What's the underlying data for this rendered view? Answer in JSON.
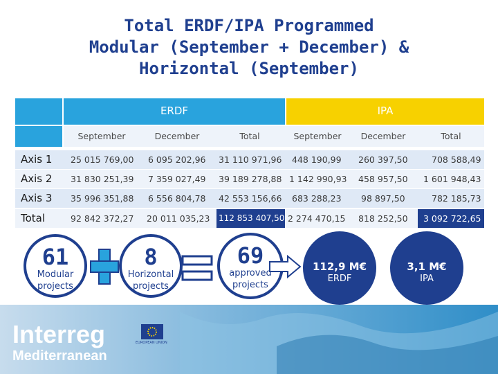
{
  "title_lines": [
    "Total ERDF/IPA Programmed",
    "Modular (September + December) &",
    "Horizontal (September)"
  ],
  "headers": {
    "erdf": "ERDF",
    "ipa": "IPA"
  },
  "subheaders": [
    "September",
    "December",
    "Total",
    "September",
    "December",
    "Total"
  ],
  "rows": [
    {
      "label": "Axis 1",
      "values": [
        "25 015 769,00",
        "6 095 202,96",
        "31 110 971,96",
        "448 190,99",
        "260 397,50",
        "708 588,49"
      ]
    },
    {
      "label": "Axis 2",
      "values": [
        "31 830 251,39",
        "7 359 027,49",
        "39 189 278,88",
        "1 142 990,93",
        "458 957,50",
        "1 601 948,43"
      ]
    },
    {
      "label": "Axis 3",
      "values": [
        "35 996 351,88",
        "6 556 804,78",
        "42 553 156,66",
        "683 288,23",
        "98 897,50",
        "782 185,73"
      ]
    },
    {
      "label": "Total",
      "values": [
        "92 842 372,27",
        "20 011 035,23",
        "112 853 407,50",
        "2 274 470,15",
        "818 252,50",
        "3 092 722,65"
      ]
    }
  ],
  "summary": {
    "modular": {
      "value": "61",
      "label_lines": [
        "Modular",
        "projects"
      ]
    },
    "horizontal": {
      "value": "8",
      "label_lines": [
        "Horizontal",
        "projects"
      ]
    },
    "approved": {
      "value": "69",
      "label_lines": [
        "approved",
        "projects"
      ]
    },
    "erdf_total": {
      "value": "112,9 M€",
      "label": "ERDF"
    },
    "ipa_total": {
      "value": "3,1 M€",
      "label": "IPA"
    }
  },
  "logo": {
    "name": "Interreg",
    "subtitle": "Mediterranean",
    "eu_text": "EUROPEAN UNION"
  },
  "colors": {
    "title": "#1f3f8f",
    "erdf_header": "#29a3dd",
    "ipa_header": "#f7d100",
    "highlight": "#1f3f8f",
    "plus": "#29a3dd"
  }
}
